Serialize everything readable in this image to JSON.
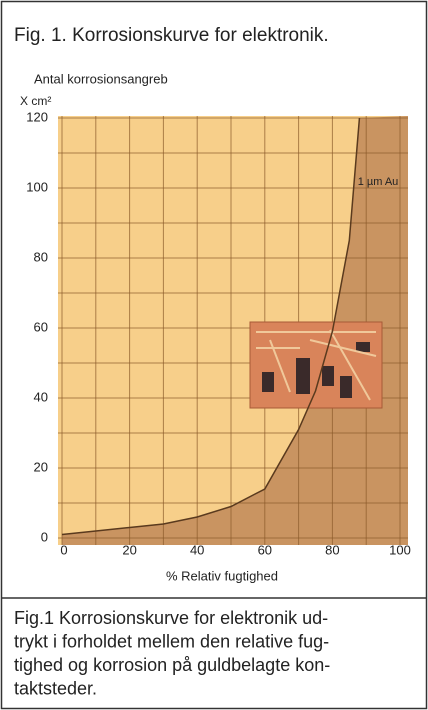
{
  "chart_data": {
    "type": "line",
    "title": "Fig. 1. Korrosionskurve for elektronik.",
    "ylabel": "Antal korrosionsangreb",
    "yunit": "X cm²",
    "xlabel": "% Relativ fugtighed",
    "caption": [
      "Fig.1 Korrosionskurve for elektronik  ud-",
      "trykt i forholdet mellem den relative fug-",
      "tighed og korrosion på guldbelagte kon-",
      "taktsteder."
    ],
    "x": [
      0,
      10,
      20,
      30,
      40,
      50,
      60,
      70,
      75,
      80,
      85,
      88
    ],
    "series": [
      {
        "name": "1 µm Au",
        "color": "#5a3a1e",
        "values": [
          1,
          2,
          3,
          4,
          6,
          9,
          14,
          31,
          42,
          59,
          85,
          120
        ]
      }
    ],
    "xlim": [
      0,
      100
    ],
    "ylim": [
      0,
      120
    ],
    "xticks": [
      0,
      20,
      40,
      60,
      80,
      100
    ],
    "yticks": [
      0,
      20,
      40,
      60,
      80,
      100,
      120
    ],
    "grid": true,
    "minor_grid": true
  }
}
